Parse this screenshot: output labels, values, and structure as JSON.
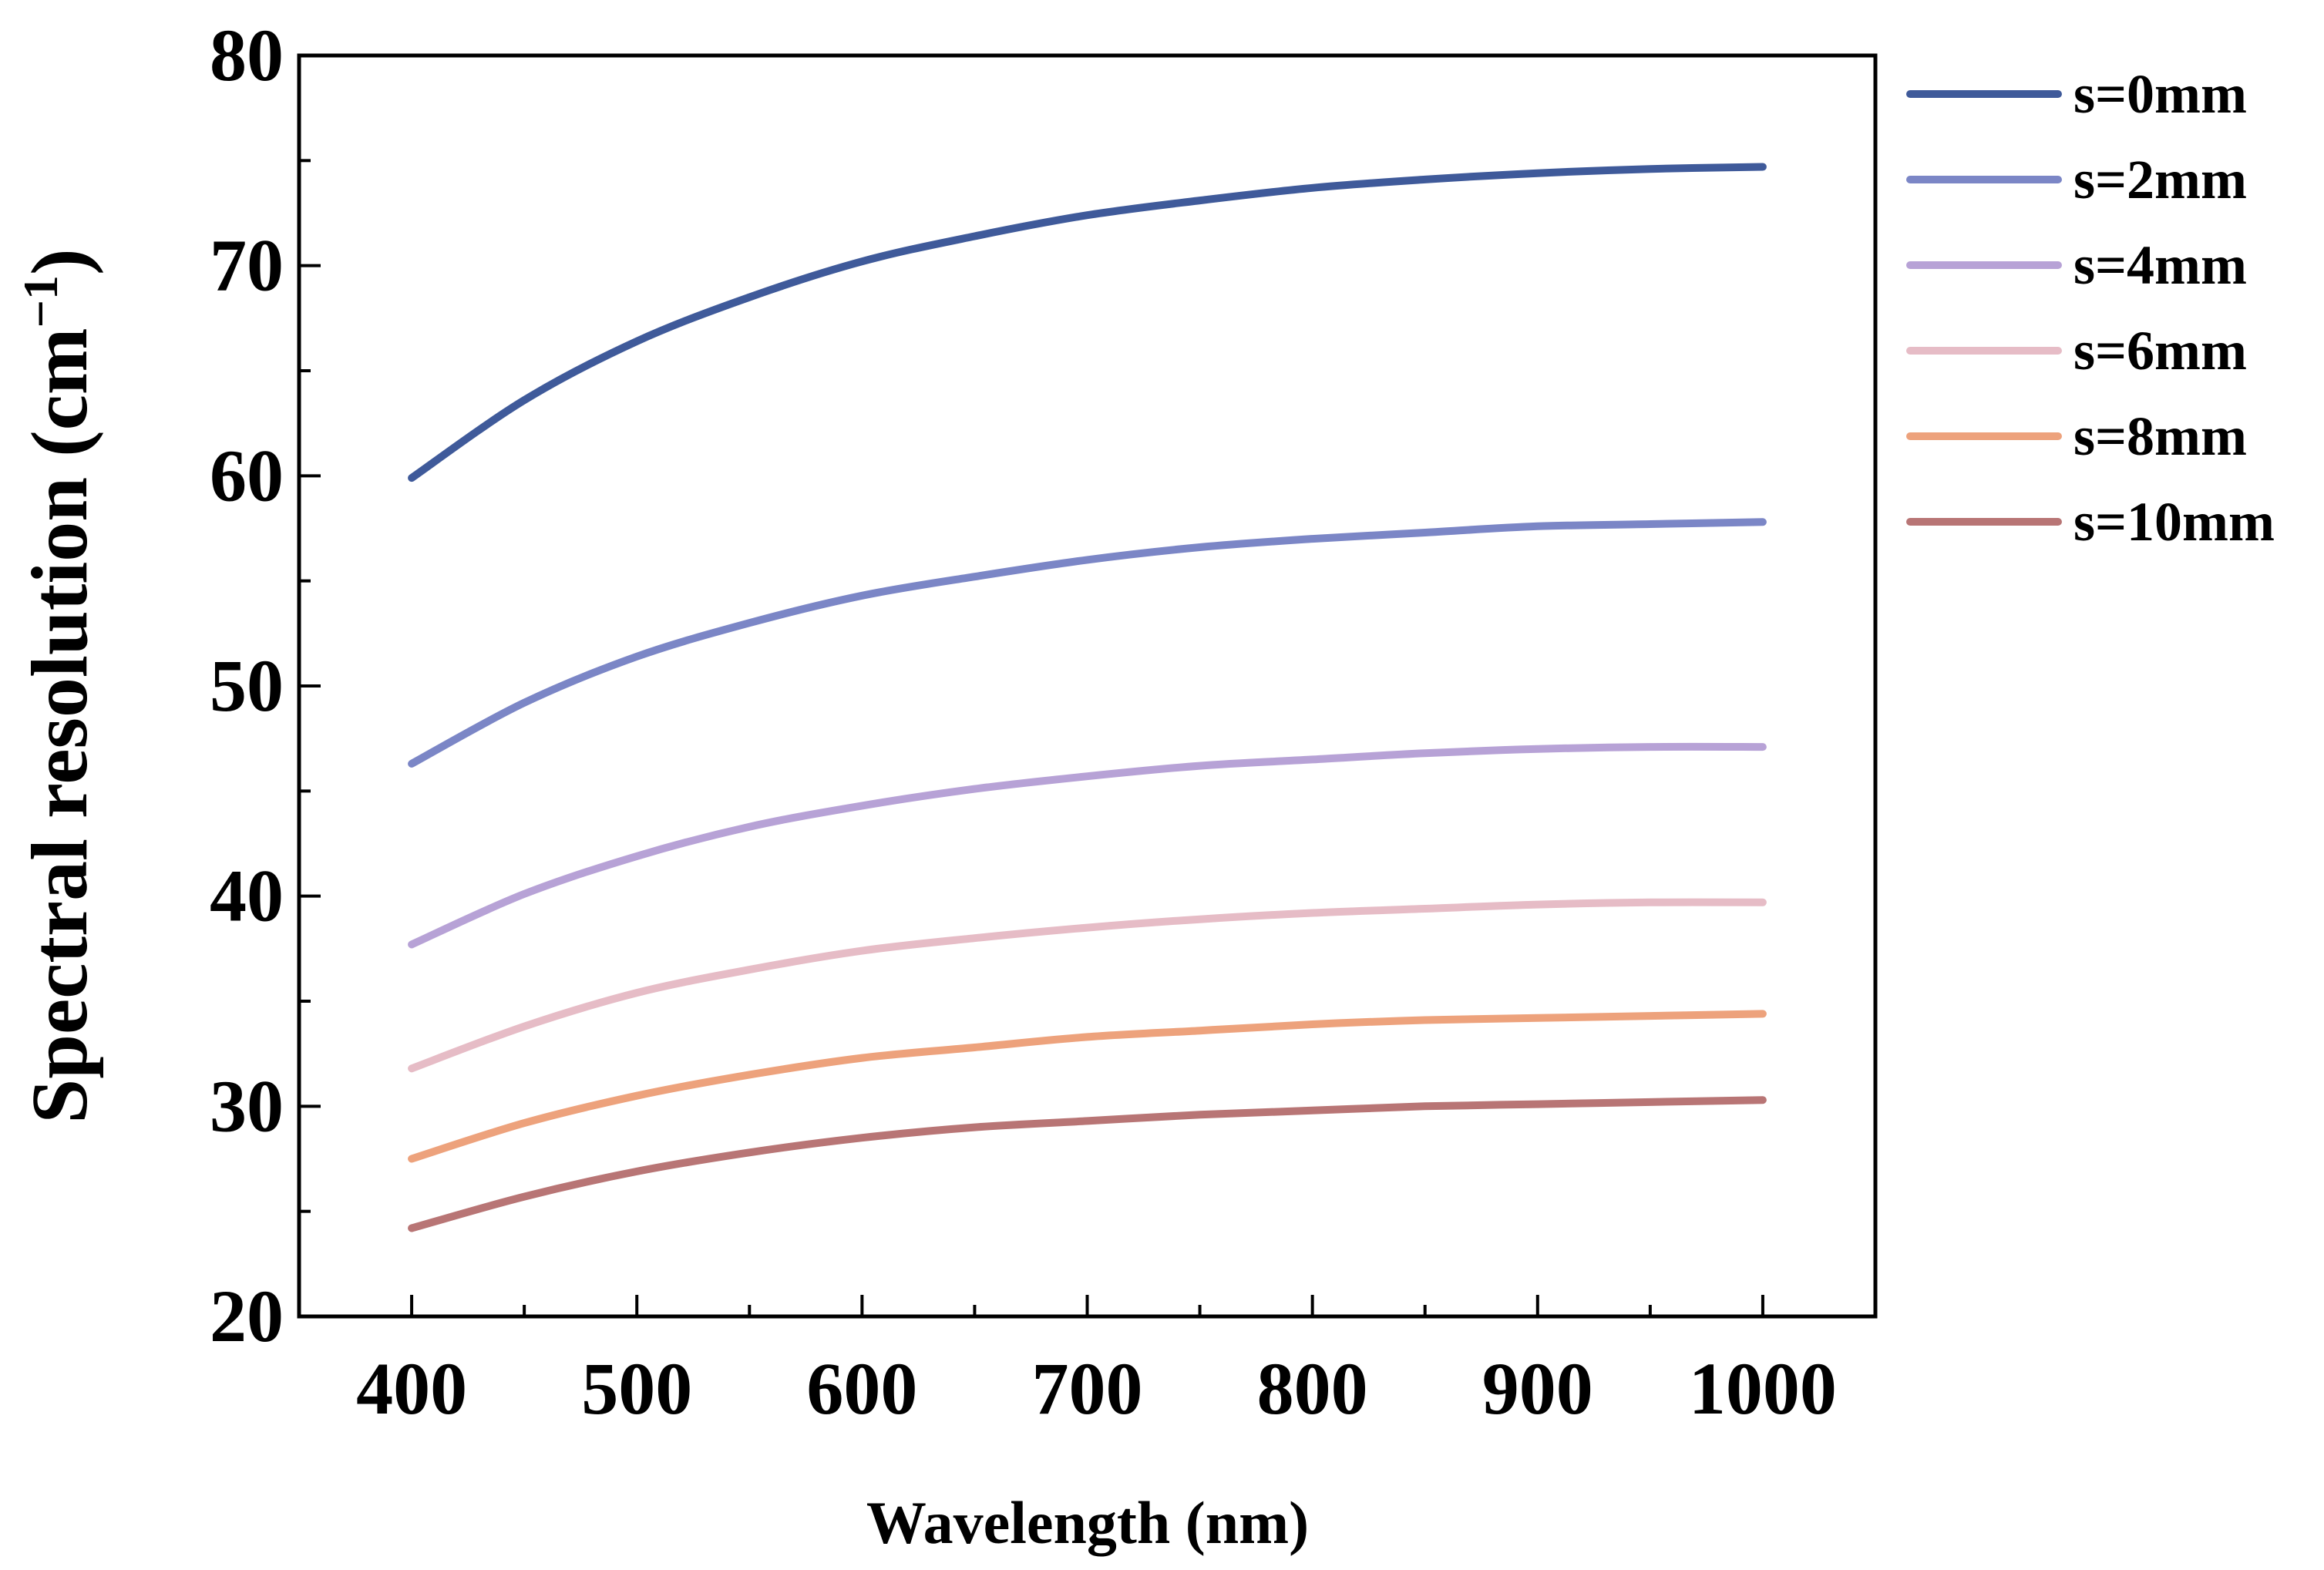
{
  "chart_data": {
    "type": "line",
    "title": "",
    "xlabel": "Wavelength (nm)",
    "ylabel": "Spectral resolution (cm",
    "ylabel_sup": "−1",
    "ylabel_close": ")",
    "xlim": [
      350,
      1050
    ],
    "ylim": [
      20,
      80
    ],
    "xticks": [
      400,
      500,
      600,
      700,
      800,
      900,
      1000
    ],
    "yticks": [
      20,
      30,
      40,
      50,
      60,
      70,
      80
    ],
    "x": [
      400,
      450,
      500,
      550,
      600,
      650,
      700,
      750,
      800,
      850,
      900,
      950,
      1000
    ],
    "legend_position": "right-outside-top",
    "series": [
      {
        "name": "s=0mm",
        "color": "#3f5a9a",
        "values": [
          59.9,
          63.6,
          66.4,
          68.5,
          70.2,
          71.4,
          72.4,
          73.1,
          73.7,
          74.1,
          74.4,
          74.6,
          74.7
        ]
      },
      {
        "name": "s=2mm",
        "color": "#7b86c6",
        "values": [
          46.3,
          49.2,
          51.4,
          53.0,
          54.3,
          55.2,
          56.0,
          56.6,
          57.0,
          57.3,
          57.6,
          57.7,
          57.8
        ]
      },
      {
        "name": "s=4mm",
        "color": "#b7a2d6",
        "values": [
          37.7,
          40.1,
          41.9,
          43.3,
          44.3,
          45.1,
          45.7,
          46.2,
          46.5,
          46.8,
          47.0,
          47.1,
          47.1
        ]
      },
      {
        "name": "s=6mm",
        "color": "#e6bcc6",
        "values": [
          31.8,
          33.8,
          35.4,
          36.5,
          37.4,
          38.0,
          38.5,
          38.9,
          39.2,
          39.4,
          39.6,
          39.7,
          39.7
        ]
      },
      {
        "name": "s=8mm",
        "color": "#eda27c",
        "values": [
          27.5,
          29.2,
          30.5,
          31.5,
          32.3,
          32.8,
          33.3,
          33.6,
          33.9,
          34.1,
          34.2,
          34.3,
          34.4
        ]
      },
      {
        "name": "s=10mm",
        "color": "#b87575",
        "values": [
          24.2,
          25.7,
          26.9,
          27.8,
          28.5,
          29.0,
          29.3,
          29.6,
          29.8,
          30.0,
          30.1,
          30.2,
          30.3
        ]
      }
    ]
  }
}
